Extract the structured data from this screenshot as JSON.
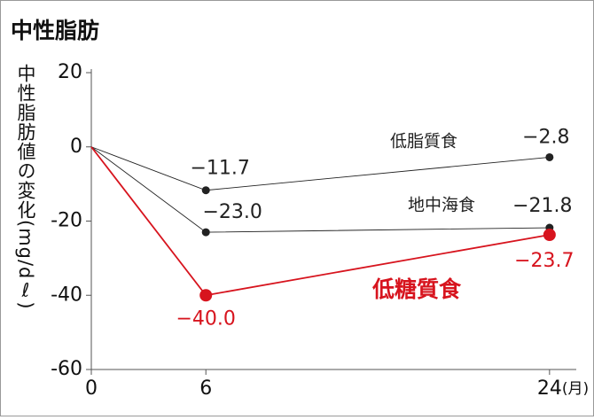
{
  "chart_data": {
    "type": "line",
    "title": "中性脂肪",
    "y_label": "中性脂肪値の変化(mg/dℓ)",
    "x_unit": "(月)",
    "x": [
      0,
      6,
      24
    ],
    "series": [
      {
        "name": "低脂質食",
        "color": "#222222",
        "values": [
          0,
          -11.7,
          -2.8
        ],
        "value_labels": [
          null,
          "−11.7",
          "−2.8"
        ]
      },
      {
        "name": "地中海食",
        "color": "#222222",
        "values": [
          0,
          -23.0,
          -21.8
        ],
        "value_labels": [
          null,
          "−23.0",
          "−21.8"
        ]
      },
      {
        "name": "低糖質食",
        "color": "#d7141e",
        "values": [
          0,
          -40.0,
          -23.7
        ],
        "value_labels": [
          null,
          "−40.0",
          "−23.7"
        ]
      }
    ],
    "xlim": [
      0,
      25.4
    ],
    "xticks": [
      0,
      6,
      24
    ],
    "ylim": [
      -60,
      20
    ],
    "yticks": [
      20,
      0,
      -20,
      -40,
      -60
    ]
  }
}
